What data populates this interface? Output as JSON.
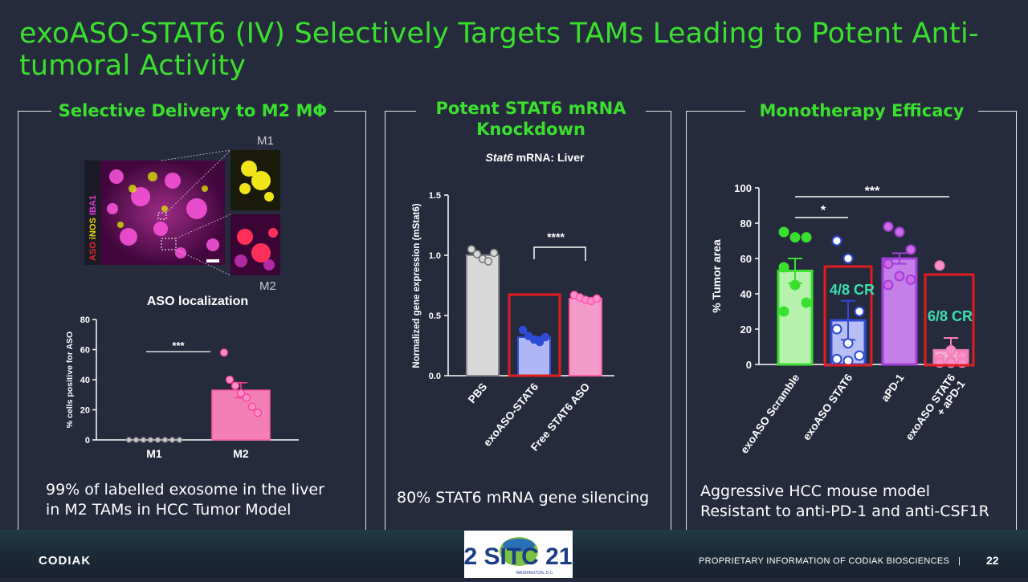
{
  "slide": {
    "title": "exoASO-STAT6 (IV) Selectively Targets TAMs Leading to Potent Anti-tumoral Activity",
    "footer": "PROPRIETARY INFORMATION OF CODIAK BIOSCIENCES",
    "page_number": "22",
    "company": "CODIAK",
    "conference_logo_text": "2 SITC 21",
    "conference_location": "WASHINGTON, D.C."
  },
  "panel1": {
    "heading": "Selective Delivery to M2 MΦ",
    "micro_label_m1": "M1",
    "micro_label_m2": "M2",
    "micro_side_label": "ASO iNOS IBA1",
    "caption_line1": "99% of labelled exosome in the liver",
    "caption_line2": "in M2 TAMs in HCC Tumor Model"
  },
  "panel2": {
    "heading_line1": "Potent STAT6 mRNA",
    "heading_line2": "Knockdown",
    "caption": "80% STAT6 mRNA gene silencing"
  },
  "panel3": {
    "heading": "Monotherapy Efficacy",
    "caption_line1": "Aggressive HCC mouse model",
    "caption_line2": "Resistant to anti-PD-1 and anti-CSF1R"
  },
  "chart_data": [
    {
      "type": "bar",
      "title": "ASO localization",
      "ylabel": "% cells positive for ASO",
      "categories": [
        "M1",
        "M2"
      ],
      "values": [
        0,
        33
      ],
      "points": [
        [
          0,
          0,
          0,
          0,
          0,
          0,
          0,
          0
        ],
        [
          58,
          40,
          36,
          31,
          28,
          22,
          18
        ]
      ],
      "ylim": [
        0,
        80
      ],
      "yticks": [
        "0",
        "20",
        "40",
        "60",
        "80"
      ],
      "significance": "***",
      "colors": [
        "#9e9e9e",
        "#f27fb5"
      ]
    },
    {
      "type": "bar",
      "title_italic": "Stat6",
      "title_rest": " mRNA: Liver",
      "ylabel": "Normalized gene expression (mStat6)",
      "categories": [
        "PBS",
        "exoASO-STAT6",
        "Free STAT6  ASO"
      ],
      "values": [
        1.0,
        0.32,
        0.64
      ],
      "points": [
        [
          1.05,
          1.01,
          0.97,
          0.95,
          1.02
        ],
        [
          0.38,
          0.33,
          0.3,
          0.28,
          0.32
        ],
        [
          0.67,
          0.65,
          0.63,
          0.62,
          0.64
        ]
      ],
      "ylim": [
        0,
        1.5
      ],
      "yticks": [
        "0.0",
        "0.5",
        "1.0",
        "1.5"
      ],
      "significance": "****",
      "colors": [
        "#d9d9d9",
        "#aeb6f5",
        "#f49cc9"
      ]
    },
    {
      "type": "bar",
      "ylabel": "% Tumor area",
      "categories": [
        "exoASO Scramble",
        "exoASO STAT6",
        "aPD-1",
        "exoASO STAT6\n+ aPD-1"
      ],
      "values": [
        53,
        25,
        60,
        8
      ],
      "errors": [
        7,
        11,
        3,
        7
      ],
      "points": [
        [
          75,
          72,
          72,
          55,
          45,
          35,
          30
        ],
        [
          70,
          60,
          30,
          20,
          12,
          5,
          3,
          2
        ],
        [
          78,
          75,
          65,
          57,
          50,
          48,
          45
        ],
        [
          56,
          8,
          5,
          3,
          2,
          1,
          1,
          1
        ]
      ],
      "ylim": [
        0,
        100
      ],
      "yticks": [
        "0",
        "20",
        "40",
        "60",
        "80",
        "100"
      ],
      "significance": [
        "*",
        "***"
      ],
      "annotations": [
        "4/8 CR",
        "6/8 CR"
      ],
      "colors": [
        "#3be02e",
        "#2e4bd6",
        "#a13fd6",
        "#f27fb5"
      ]
    }
  ]
}
